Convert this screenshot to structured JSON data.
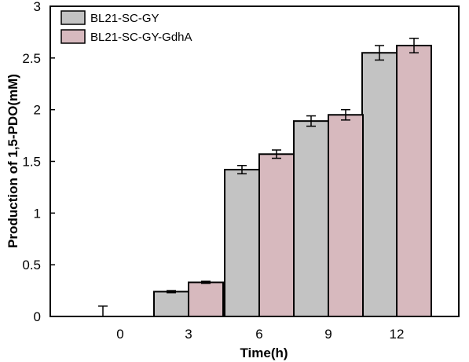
{
  "chart_data": {
    "type": "bar",
    "title": "",
    "xlabel": "Time(h)",
    "ylabel": "Production of 1,5-PDO(mM)",
    "categories": [
      "0",
      "3",
      "6",
      "9",
      "12"
    ],
    "ylim": [
      0,
      3
    ],
    "yticks": [
      "0",
      "0.5",
      "1",
      "1.5",
      "2",
      "2.5",
      "3"
    ],
    "grid": false,
    "legend": "top-left",
    "series": [
      {
        "name": "BL21-SC-GY",
        "color": "#c3c3c3",
        "values": [
          0.0,
          0.24,
          1.42,
          1.89,
          2.55
        ],
        "errors": [
          0.1,
          0.01,
          0.04,
          0.05,
          0.07
        ]
      },
      {
        "name": "BL21-SC-GY-GdhA",
        "color": "#d7b9be",
        "values": [
          0.0,
          0.33,
          1.57,
          1.95,
          2.62
        ],
        "errors": [
          0.0,
          0.01,
          0.04,
          0.05,
          0.07
        ]
      }
    ]
  }
}
